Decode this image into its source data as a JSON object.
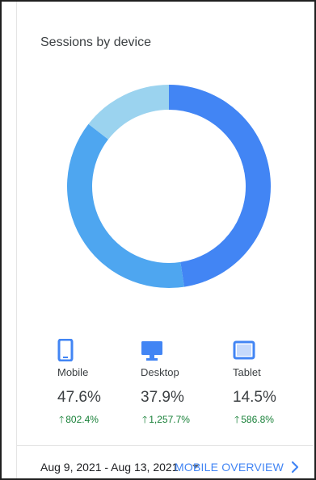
{
  "card": {
    "title": "Sessions by device"
  },
  "chart_data": {
    "type": "pie",
    "variant": "donut",
    "categories": [
      "Mobile",
      "Desktop",
      "Tablet"
    ],
    "values": [
      47.6,
      37.9,
      14.5
    ],
    "colors": [
      "#4285f4",
      "#4ea6f0",
      "#9bd3ef"
    ],
    "start_angle_deg": 0,
    "direction": "clockwise"
  },
  "legend": {
    "items": [
      {
        "label": "Mobile",
        "percent": "47.6%",
        "change": "802.4%",
        "change_icon": "arrow-up-icon",
        "icon": "smartphone-icon",
        "color": "#4285f4"
      },
      {
        "label": "Desktop",
        "percent": "37.9%",
        "change": "1,257.7%",
        "change_icon": "arrow-up-icon",
        "icon": "desktop-icon",
        "color": "#4285f4"
      },
      {
        "label": "Tablet",
        "percent": "14.5%",
        "change": "586.8%",
        "change_icon": "arrow-up-icon",
        "icon": "tablet-icon",
        "color": "#4285f4"
      }
    ],
    "positive_color": "#188038"
  },
  "footer": {
    "date_range": "Aug 9, 2021 - Aug 13, 2021",
    "link_label": "MOBILE OVERVIEW",
    "link_color": "#4285f4"
  }
}
